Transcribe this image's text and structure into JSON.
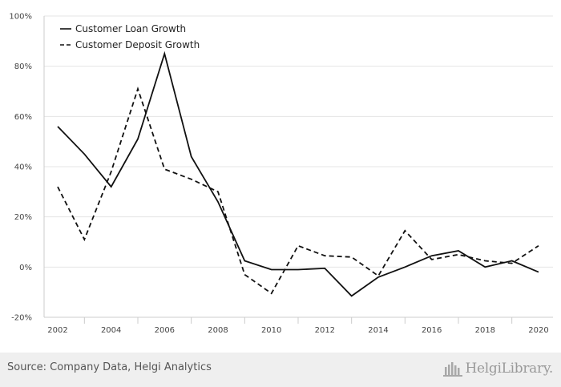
{
  "chart_data": {
    "type": "line",
    "title": "",
    "xlabel": "",
    "ylabel": "",
    "x": [
      2002,
      2003,
      2004,
      2005,
      2006,
      2007,
      2008,
      2009,
      2010,
      2011,
      2012,
      2013,
      2014,
      2015,
      2016,
      2017,
      2018,
      2019,
      2020
    ],
    "x_ticks": [
      "2002",
      "2004",
      "2006",
      "2008",
      "2010",
      "2012",
      "2014",
      "2016",
      "2018",
      "2020"
    ],
    "y_ticks": [
      "100%",
      "80%",
      "60%",
      "40%",
      "20%",
      "0%",
      "-20%"
    ],
    "ylim": [
      -20,
      100
    ],
    "grid": true,
    "legend_position": "top-left",
    "series": [
      {
        "name": "Customer Loan Growth",
        "style": "solid",
        "values": [
          56,
          45,
          32,
          51,
          85,
          44,
          26,
          2.5,
          -1,
          -1,
          -0.5,
          -11.5,
          -4,
          0,
          4.5,
          6.5,
          0,
          2.5,
          -2
        ]
      },
      {
        "name": "Customer Deposit Growth",
        "style": "dashed",
        "values": [
          32,
          11,
          38,
          71,
          39,
          35,
          30,
          -3,
          -10.5,
          8.5,
          4.5,
          4,
          -3.5,
          14.5,
          3,
          5,
          2.5,
          1.5,
          8.5
        ]
      }
    ],
    "colors": {
      "line": "#111111",
      "grid": "#e4e4e4",
      "axis": "#cccccc"
    }
  },
  "footer": {
    "source": "Source: Company Data, Helgi Analytics",
    "brand": "HelgiLibrary."
  }
}
